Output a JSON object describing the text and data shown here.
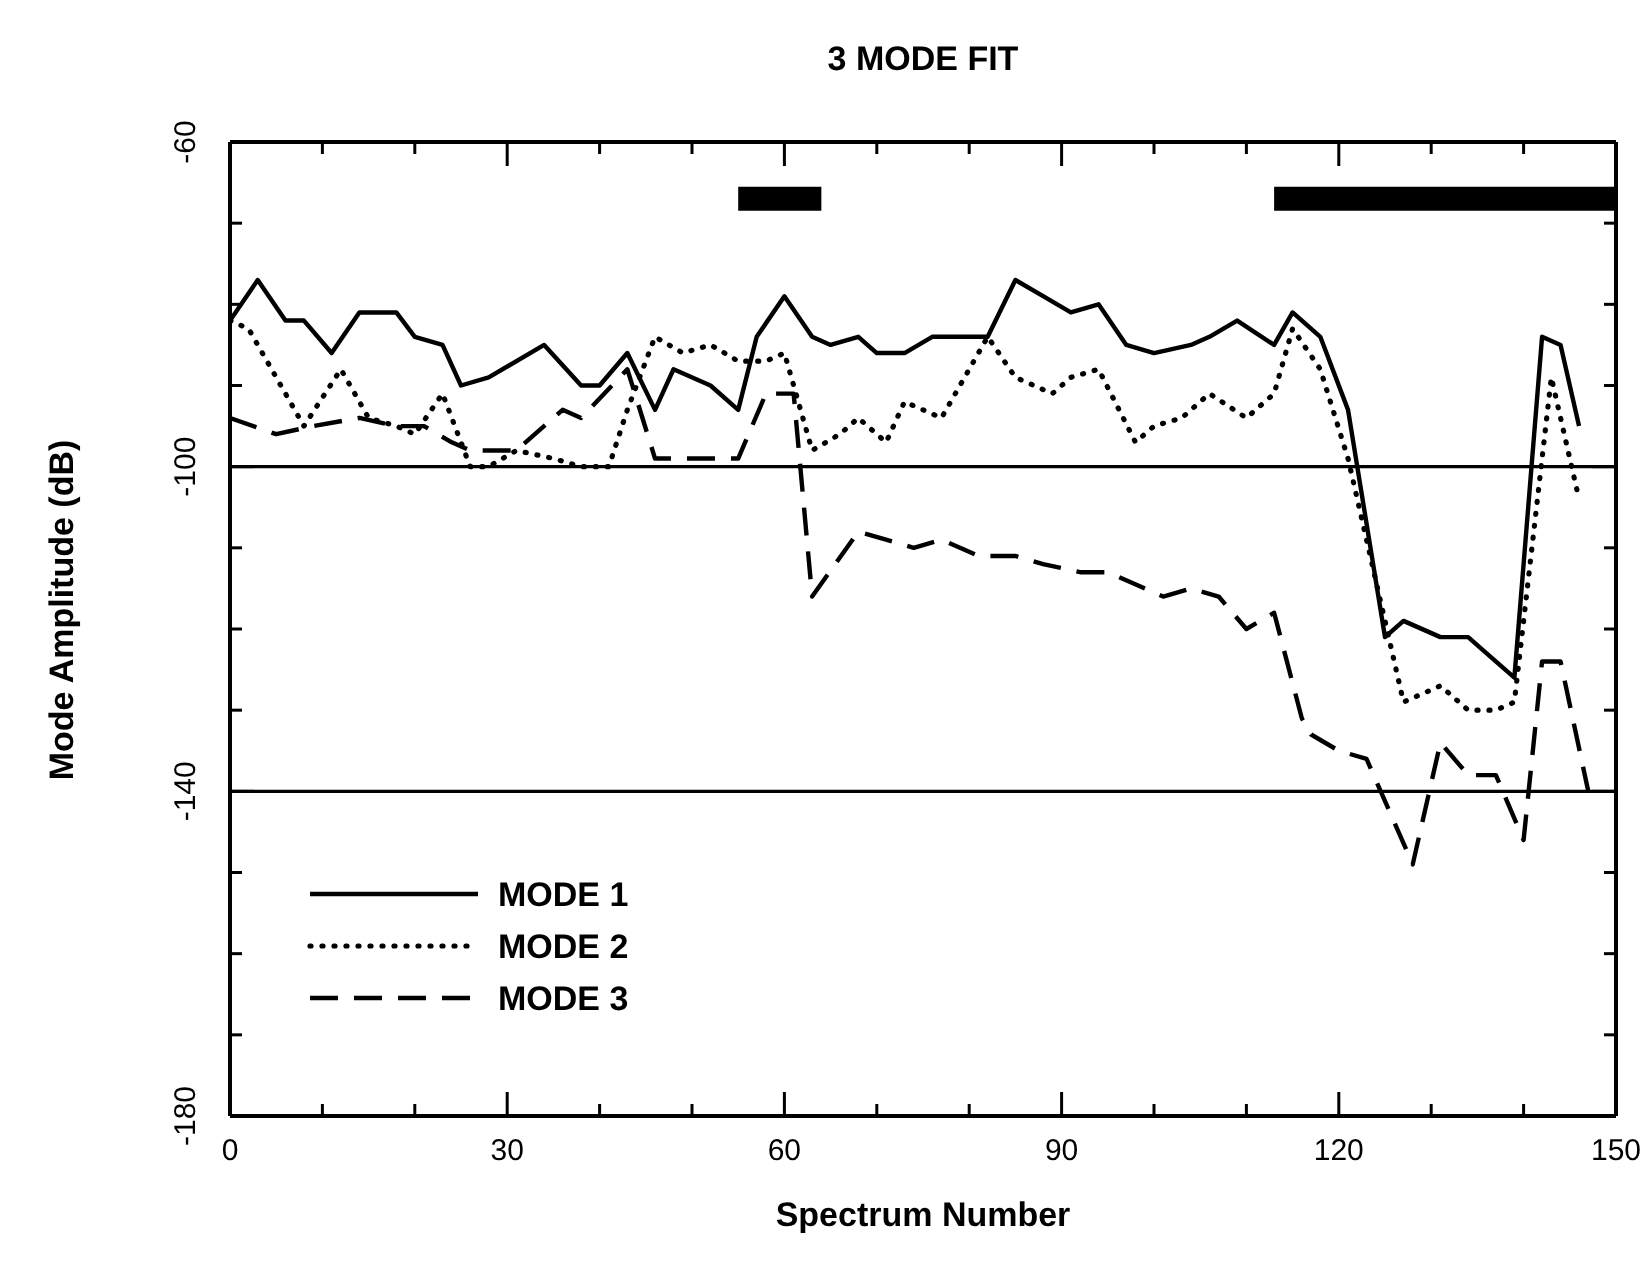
{
  "chart_data": {
    "type": "line",
    "title": "3 MODE FIT",
    "xlabel": "Spectrum Number",
    "ylabel": "Mode Amplitude (dB)",
    "xlim": [
      0,
      150
    ],
    "xticks": [
      0,
      {
        "value": 10,
        "label": null
      },
      {
        "value": 20,
        "label": null
      },
      30,
      {
        "value": 40,
        "label": null
      },
      {
        "value": 50,
        "label": null
      },
      60,
      {
        "value": 70,
        "label": null
      },
      {
        "value": 80,
        "label": null
      },
      90,
      {
        "value": 100,
        "label": null
      },
      {
        "value": 110,
        "label": null
      },
      120,
      {
        "value": 130,
        "label": null
      },
      {
        "value": 140,
        "label": null
      },
      150
    ],
    "ylim": [
      -180,
      -60
    ],
    "yticks": [
      -60,
      {
        "value": -70,
        "label": null
      },
      {
        "value": -80,
        "label": null
      },
      {
        "value": -90,
        "label": null
      },
      -100,
      {
        "value": -110,
        "label": null
      },
      {
        "value": -120,
        "label": null
      },
      {
        "value": -130,
        "label": null
      },
      -140,
      {
        "value": -150,
        "label": null
      },
      {
        "value": -160,
        "label": null
      },
      {
        "value": -170,
        "label": null
      },
      -180
    ],
    "legend": "bottom left",
    "ref_lines": [
      {
        "axis": "y",
        "value": -100,
        "color": "#000000"
      },
      {
        "axis": "y",
        "value": -140,
        "color": "#000000"
      }
    ],
    "series": [
      {
        "name": "MODE 1",
        "color": "#000000",
        "line_style": "solid",
        "x": [
          0,
          3,
          6,
          8,
          11,
          14,
          18,
          20,
          23,
          25,
          28,
          34,
          38,
          40,
          43,
          46,
          48,
          52,
          55,
          57,
          60,
          63,
          65,
          68,
          70,
          73,
          76,
          82,
          85,
          88,
          91,
          94,
          97,
          100,
          104,
          106,
          109,
          113,
          115,
          118,
          121,
          125,
          127,
          131,
          134,
          136,
          139,
          142,
          144,
          146
        ],
        "values": [
          -82,
          -77,
          -82,
          -82,
          -86,
          -81,
          -81,
          -84,
          -85,
          -90,
          -89,
          -85,
          -90,
          -90,
          -86,
          -93,
          -88,
          -90,
          -93,
          -84,
          -79,
          -84,
          -85,
          -84,
          -86,
          -86,
          -84,
          -84,
          -77,
          -79,
          -81,
          -80,
          -85,
          -86,
          -85,
          -84,
          -82,
          -85,
          -81,
          -84,
          -93,
          -121,
          -119,
          -121,
          -121,
          -123,
          -126,
          -84,
          -85,
          -95
        ]
      },
      {
        "name": "MODE 2",
        "color": "#000000",
        "line_style": "dotted",
        "x": [
          0,
          2,
          8,
          12,
          15,
          18,
          20,
          23,
          26,
          28,
          31,
          35,
          38,
          41,
          43,
          46,
          49,
          52,
          55,
          58,
          60,
          63,
          66,
          68,
          71,
          73,
          77,
          80,
          82,
          85,
          89,
          91,
          94,
          98,
          100,
          103,
          106,
          110,
          113,
          115,
          118,
          121,
          127,
          131,
          134,
          137,
          139,
          143,
          146
        ],
        "values": [
          -82,
          -83,
          -95,
          -88,
          -94,
          -95,
          -96,
          -91,
          -100,
          -100,
          -98,
          -99,
          -100,
          -100,
          -93,
          -84,
          -86,
          -85,
          -87,
          -87,
          -86,
          -98,
          -96,
          -94,
          -97,
          -92,
          -94,
          -88,
          -84,
          -89,
          -91,
          -89,
          -88,
          -97,
          -95,
          -94,
          -91,
          -94,
          -91,
          -83,
          -88,
          -99,
          -129,
          -127,
          -130,
          -130,
          -129,
          -89,
          -104
        ]
      },
      {
        "name": "MODE 3",
        "color": "#000000",
        "line_style": "dashed",
        "x": [
          0,
          5,
          9,
          14,
          18,
          21,
          24,
          26,
          31,
          36,
          38,
          43,
          46,
          49,
          55,
          58,
          61,
          63,
          68,
          71,
          74,
          77,
          81,
          85,
          88,
          92,
          95,
          101,
          104,
          107,
          110,
          113,
          116,
          117,
          120,
          123,
          128,
          131,
          134,
          137,
          140,
          142,
          144,
          147
        ],
        "values": [
          -94,
          -96,
          -95,
          -94,
          -95,
          -95,
          -97,
          -98,
          -98,
          -93,
          -94,
          -88,
          -99,
          -99,
          -99,
          -91,
          -91,
          -116,
          -108,
          -109,
          -110,
          -109,
          -111,
          -111,
          -112,
          -113,
          -113,
          -116,
          -115,
          -116,
          -120,
          -118,
          -131,
          -133,
          -135,
          -136,
          -149,
          -134,
          -138,
          -138,
          -146,
          -124,
          -124,
          -140
        ]
      },
      {
        "color": "#000000",
        "line_style": "solid",
        "x": [
          55,
          64
        ],
        "values": [
          -67,
          -67
        ]
      },
      {
        "color": "#000000",
        "line_style": "solid",
        "x": [
          113,
          150
        ],
        "values": [
          -67,
          -67
        ]
      }
    ]
  }
}
